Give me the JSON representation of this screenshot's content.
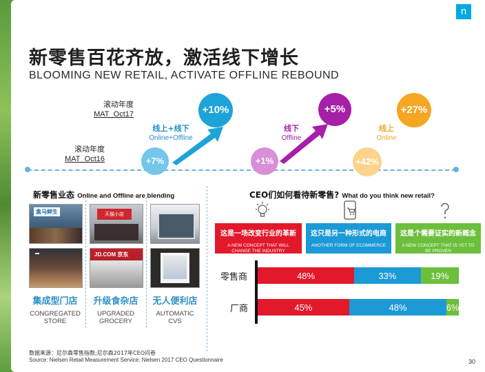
{
  "brand": {
    "logo_text": "n",
    "accent": "#00a9e0"
  },
  "title": {
    "cn": "新零售百花齐放，激活线下增长",
    "en": "BLOOMING NEW RETAIL, ACTIVATE OFFLINE REBOUND"
  },
  "mat": {
    "oct17": {
      "line1": "滚动年度",
      "line2": "MAT_Oct17"
    },
    "oct16": {
      "line1": "滚动年度",
      "line2": "MAT_Oct16"
    }
  },
  "growth": {
    "online_offline": {
      "cn": "线上+线下",
      "en": "Online+Offline",
      "prev": "+7%",
      "curr": "+10%"
    },
    "offline": {
      "cn": "线下",
      "en": "Offline",
      "prev": "+1%",
      "curr": "+5%"
    },
    "online": {
      "cn": "线上",
      "en": "Online",
      "prev": "+42%",
      "curr": "+27%"
    }
  },
  "colors": {
    "blue": "#1ea3d9",
    "purple": "#a61fa8",
    "orange": "#f5a623",
    "red": "#e2192a",
    "bar_blue": "#1b9ad6",
    "green": "#6cbf3c",
    "timeline": "#6ab0de"
  },
  "formats": {
    "title": {
      "cn": "新零售业态",
      "en": "Online and Offline are blending"
    },
    "stores": [
      {
        "cn": "集成型门店",
        "en1": "CONGREGATED",
        "en2": "STORE"
      },
      {
        "cn": "升级食杂店",
        "en1": "UPGRADED",
        "en2": "GROCERY"
      },
      {
        "cn": "无人便利店",
        "en1": "AUTOMATIC",
        "en2": "CVS"
      }
    ],
    "photo_signs": [
      "盒马鲜生",
      "天猫小店",
      "JD.COM 京东"
    ]
  },
  "ceo": {
    "title": {
      "cn": "CEO们如何看待新零售?",
      "en": "What do you think new retail?"
    },
    "icons": [
      "lightbulb-icon",
      "phone-cart-icon",
      "question-icon"
    ],
    "options": [
      {
        "cn": "这是一场改变行业的革新",
        "en1": "A NEW CONCEPT THAT WILL",
        "en2": "CHANGE THE INDUSTRY",
        "color": "#e2192a"
      },
      {
        "cn": "这只是另一种形式的电商",
        "en1": "ANOTHER FORM OF ECOMMERCE",
        "en2": "",
        "color": "#1b9ad6"
      },
      {
        "cn": "这是个需要证实的新概念",
        "en1": "A NEW CONCEPT THAT IS YET TO",
        "en2": "BE PROVEN",
        "color": "#6cbf3c"
      }
    ],
    "rows": [
      {
        "label": "零售商",
        "values": [
          "48%",
          "33%",
          "19%"
        ]
      },
      {
        "label": "厂商",
        "values": [
          "45%",
          "48%",
          "6%"
        ]
      }
    ]
  },
  "chart_data": {
    "type": "bar",
    "categories": [
      "零售商",
      "厂商"
    ],
    "series": [
      {
        "name": "这是一场改变行业的革新",
        "values": [
          48,
          45
        ]
      },
      {
        "name": "这只是另一种形式的电商",
        "values": [
          33,
          48
        ]
      },
      {
        "name": "这是个需要证实的新概念",
        "values": [
          19,
          6
        ]
      }
    ]
  },
  "source": {
    "line1": "数据来源：尼尔森零售指数;尼尔森2017年CEO问卷",
    "line2": "Source: Nielsen Retail Measurement Service; Nielsen 2017 CEO Questionnaire"
  },
  "page_number": "30"
}
